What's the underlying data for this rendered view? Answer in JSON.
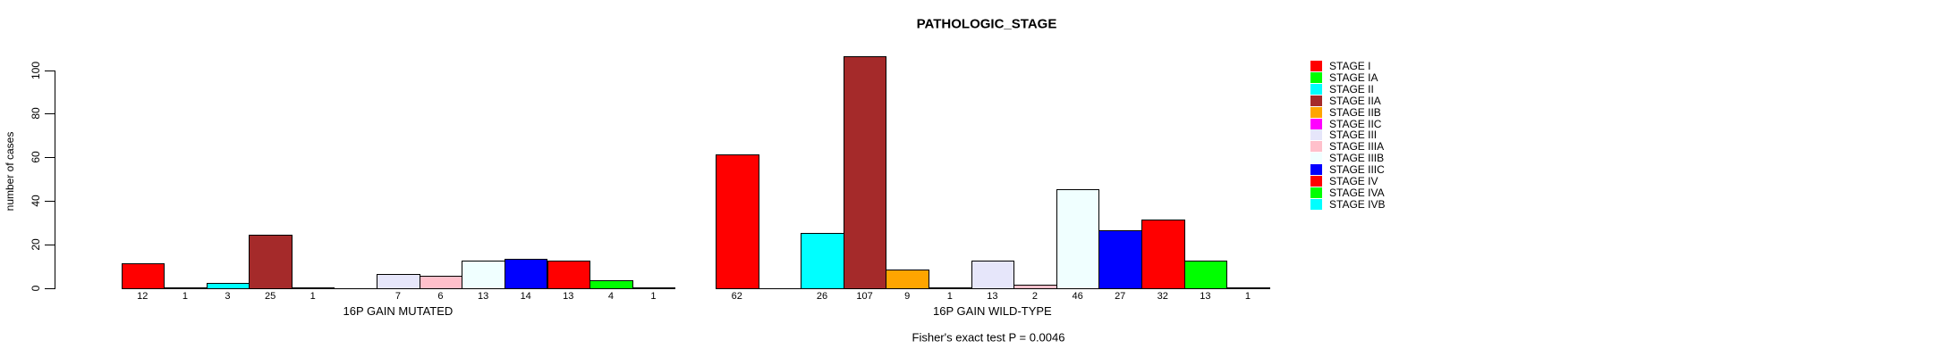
{
  "title": "PATHOLOGIC_STAGE",
  "footer": "Fisher's exact test P = 0.0046",
  "chart_data": {
    "type": "bar",
    "title": "PATHOLOGIC_STAGE",
    "xlabel": "",
    "ylabel": "number of cases",
    "ylim": [
      0,
      110
    ],
    "yticks": [
      0,
      20,
      40,
      60,
      80,
      100
    ],
    "grid": false,
    "legend_position": "right",
    "categories": [
      "STAGE I",
      "STAGE IA",
      "STAGE II",
      "STAGE IIA",
      "STAGE IIB",
      "STAGE IIC",
      "STAGE III",
      "STAGE IIIA",
      "STAGE IIIB",
      "STAGE IIIC",
      "STAGE IV",
      "STAGE IVA",
      "STAGE IVB"
    ],
    "colors": [
      "#FF0000",
      "#00FF00",
      "#00FFFF",
      "#A52A2A",
      "#FFA500",
      "#FF00FF",
      "#E6E6FA",
      "#FFC0CB",
      "#F0FFFF",
      "#0000FF",
      "#FF0000",
      "#00FF00",
      "#00FFFF"
    ],
    "series": [
      {
        "name": "16P GAIN MUTATED",
        "values": [
          12,
          1,
          3,
          25,
          1,
          0,
          7,
          6,
          13,
          14,
          13,
          4,
          1
        ]
      },
      {
        "name": "16P GAIN WILD-TYPE",
        "values": [
          62,
          0,
          26,
          107,
          9,
          1,
          13,
          2,
          46,
          27,
          32,
          13,
          1
        ]
      }
    ],
    "bar_labels_shown": true,
    "annotation": "Fisher's exact test P = 0.0046"
  }
}
